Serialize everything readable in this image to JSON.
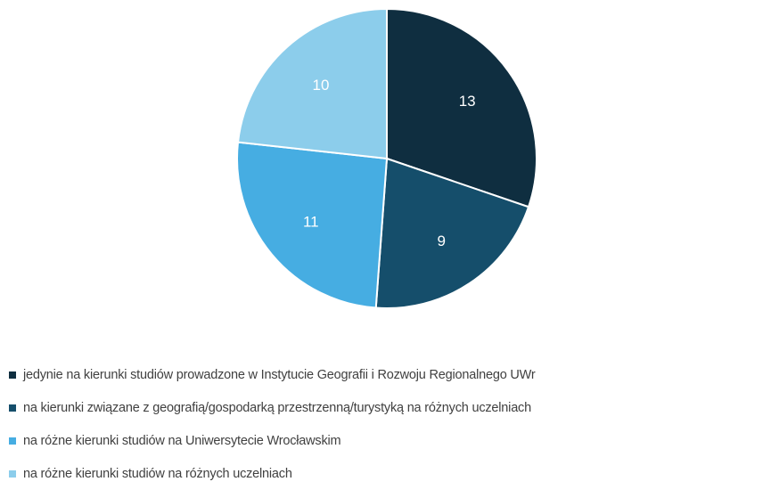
{
  "chart_data": {
    "type": "pie",
    "title": "",
    "slices": [
      {
        "label": "jedynie na kierunki studiów prowadzone w Instytucie Geografii i Rozwoju Regionalnego UWr",
        "value": 13,
        "color": "#0f2e40"
      },
      {
        "label": "na kierunki związane z geografią/gospodarką przestrzenną/turystyką na różnych uczelniach",
        "value": 9,
        "color": "#154e6b"
      },
      {
        "label": "na różne kierunki studiów na Uniwersytecie Wrocławskim",
        "value": 11,
        "color": "#46ade2"
      },
      {
        "label": "na różne kierunki studiów na różnych uczelniach",
        "value": 10,
        "color": "#8ccdeb"
      }
    ],
    "start_angle_deg": 0,
    "direction": "clockwise",
    "data_labels": "inside",
    "legend_position": "bottom"
  }
}
